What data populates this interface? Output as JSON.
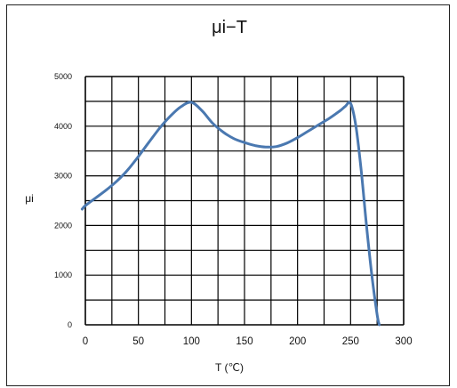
{
  "chart_data": {
    "type": "line",
    "title": "μi−T",
    "xlabel": "T (℃)",
    "ylabel": "μi",
    "xlim": [
      0,
      300
    ],
    "ylim": [
      0,
      5000
    ],
    "xticks": [
      0,
      50,
      100,
      150,
      200,
      250,
      300
    ],
    "yticks": [
      0,
      1000,
      2000,
      3000,
      4000,
      5000
    ],
    "grid": true,
    "colors": {
      "line": "#4a78b0",
      "grid": "#000000"
    },
    "series": [
      {
        "x": [
          -3,
          0,
          10,
          20,
          30,
          40,
          50,
          60,
          70,
          80,
          90,
          100,
          110,
          120,
          130,
          140,
          150,
          160,
          170,
          180,
          190,
          200,
          210,
          220,
          230,
          240,
          245,
          250,
          255,
          260,
          265,
          270,
          275,
          277
        ],
        "y": [
          2330,
          2400,
          2560,
          2720,
          2900,
          3120,
          3390,
          3680,
          3960,
          4200,
          4390,
          4480,
          4310,
          4060,
          3880,
          3750,
          3670,
          3610,
          3580,
          3590,
          3660,
          3770,
          3900,
          4030,
          4160,
          4310,
          4400,
          4460,
          4000,
          3100,
          2000,
          1000,
          200,
          0
        ]
      }
    ]
  }
}
